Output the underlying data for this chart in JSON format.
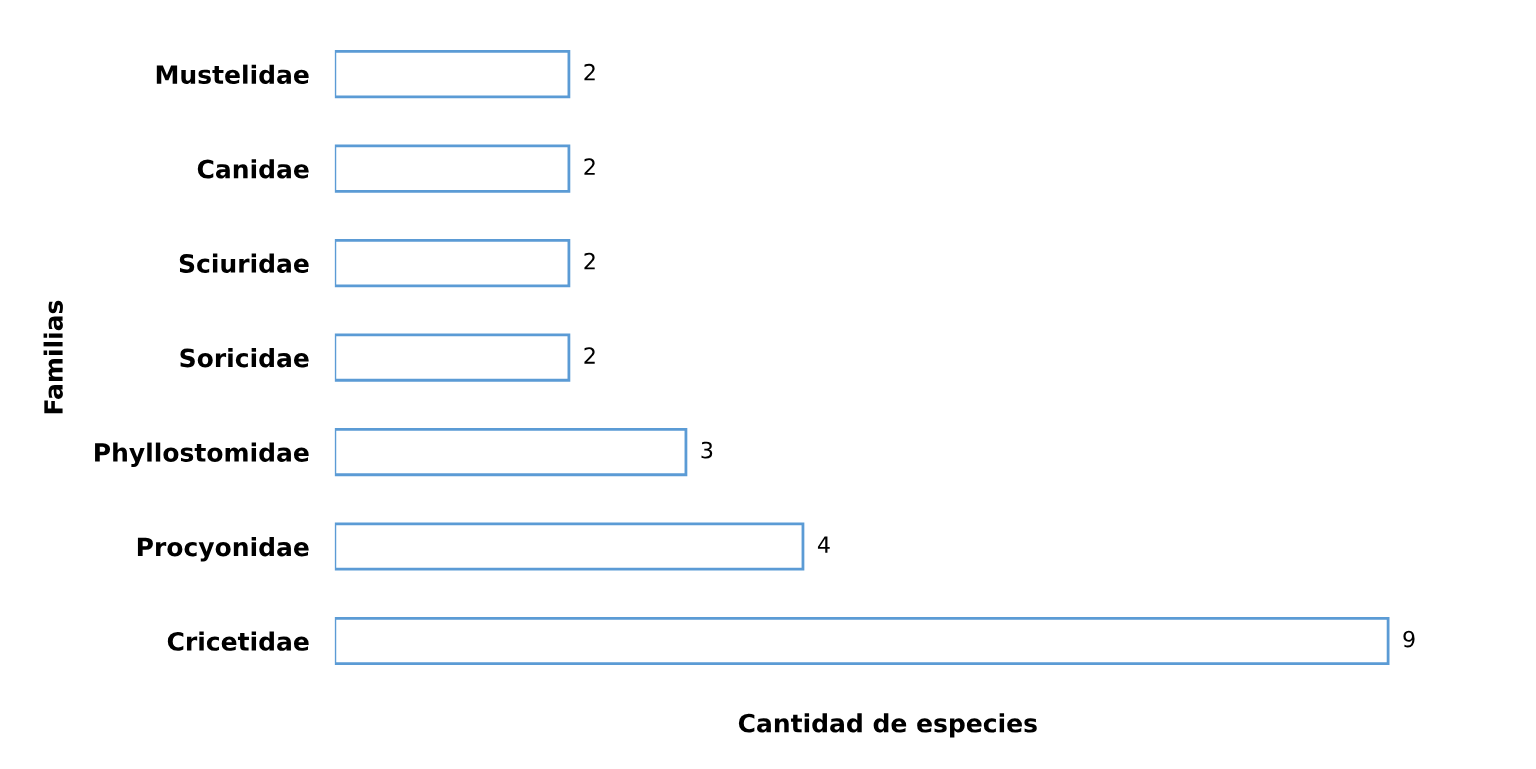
{
  "chart_data": {
    "type": "bar",
    "orientation": "horizontal",
    "xlabel": "Cantidad de especies",
    "ylabel": "Familias",
    "categories": [
      "Mustelidae",
      "Canidae",
      "Sciuridae",
      "Soricidae",
      "Phyllostomidae",
      "Procyonidae",
      "Cricetidae"
    ],
    "values": [
      2,
      2,
      2,
      2,
      3,
      4,
      9
    ],
    "color": "#5b9bd5",
    "data_labels": true,
    "tick_labels": "y"
  }
}
